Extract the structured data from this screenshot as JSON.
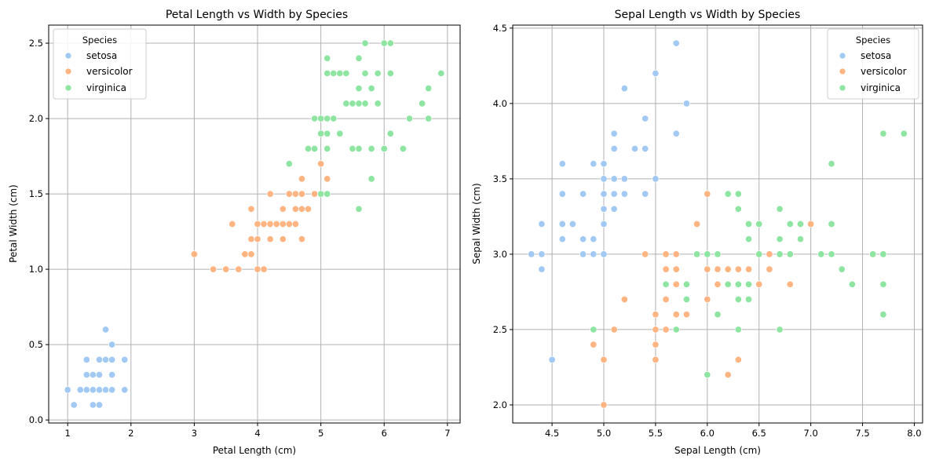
{
  "figure": {
    "background": "#ffffff"
  },
  "species_colors": {
    "setosa": "#a1c9f4",
    "versicolor": "#ffb482",
    "virginica": "#8de5a1"
  },
  "chart_data": [
    {
      "type": "scatter",
      "title": "Petal Length vs Width by Species",
      "xlabel": "Petal Length (cm)",
      "ylabel": "Petal Width (cm)",
      "xlim": [
        0.7,
        7.2
      ],
      "ylim": [
        -0.02,
        2.62
      ],
      "xticks": [
        1,
        2,
        3,
        4,
        5,
        6,
        7
      ],
      "xtick_labels": [
        "1",
        "2",
        "3",
        "4",
        "5",
        "6",
        "7"
      ],
      "yticks": [
        0.0,
        0.5,
        1.0,
        1.5,
        2.0,
        2.5
      ],
      "ytick_labels": [
        "0.0",
        "0.5",
        "1.0",
        "1.5",
        "2.0",
        "2.5"
      ],
      "grid": true,
      "legend": {
        "title": "Species",
        "placement": "top-left"
      },
      "series": [
        {
          "name": "setosa",
          "color": "#a1c9f4",
          "points": [
            [
              1.0,
              0.2
            ],
            [
              1.1,
              0.1
            ],
            [
              1.2,
              0.2
            ],
            [
              1.3,
              0.2
            ],
            [
              1.3,
              0.3
            ],
            [
              1.3,
              0.4
            ],
            [
              1.4,
              0.1
            ],
            [
              1.4,
              0.2
            ],
            [
              1.4,
              0.3
            ],
            [
              1.5,
              0.1
            ],
            [
              1.5,
              0.2
            ],
            [
              1.5,
              0.3
            ],
            [
              1.5,
              0.4
            ],
            [
              1.6,
              0.2
            ],
            [
              1.6,
              0.4
            ],
            [
              1.6,
              0.6
            ],
            [
              1.7,
              0.2
            ],
            [
              1.7,
              0.3
            ],
            [
              1.7,
              0.4
            ],
            [
              1.7,
              0.5
            ],
            [
              1.9,
              0.2
            ],
            [
              1.9,
              0.4
            ]
          ]
        },
        {
          "name": "versicolor",
          "color": "#ffb482",
          "points": [
            [
              3.0,
              1.1
            ],
            [
              3.3,
              1.0
            ],
            [
              3.5,
              1.0
            ],
            [
              3.6,
              1.3
            ],
            [
              3.7,
              1.0
            ],
            [
              3.8,
              1.1
            ],
            [
              3.9,
              1.1
            ],
            [
              3.9,
              1.2
            ],
            [
              3.9,
              1.4
            ],
            [
              4.0,
              1.0
            ],
            [
              4.0,
              1.2
            ],
            [
              4.0,
              1.3
            ],
            [
              4.1,
              1.0
            ],
            [
              4.1,
              1.3
            ],
            [
              4.2,
              1.2
            ],
            [
              4.2,
              1.3
            ],
            [
              4.2,
              1.5
            ],
            [
              4.3,
              1.3
            ],
            [
              4.4,
              1.2
            ],
            [
              4.4,
              1.3
            ],
            [
              4.4,
              1.4
            ],
            [
              4.5,
              1.3
            ],
            [
              4.5,
              1.5
            ],
            [
              4.5,
              1.7
            ],
            [
              4.6,
              1.3
            ],
            [
              4.6,
              1.4
            ],
            [
              4.6,
              1.5
            ],
            [
              4.7,
              1.2
            ],
            [
              4.7,
              1.4
            ],
            [
              4.7,
              1.5
            ],
            [
              4.7,
              1.6
            ],
            [
              4.8,
              1.4
            ],
            [
              4.8,
              1.8
            ],
            [
              4.9,
              1.5
            ],
            [
              5.0,
              1.7
            ],
            [
              5.1,
              1.6
            ]
          ]
        },
        {
          "name": "virginica",
          "color": "#8de5a1",
          "points": [
            [
              4.5,
              1.7
            ],
            [
              4.8,
              1.8
            ],
            [
              4.9,
              1.8
            ],
            [
              4.9,
              2.0
            ],
            [
              5.0,
              1.5
            ],
            [
              5.0,
              2.0
            ],
            [
              5.0,
              1.9
            ],
            [
              5.1,
              1.5
            ],
            [
              5.1,
              1.8
            ],
            [
              5.1,
              1.9
            ],
            [
              5.1,
              2.0
            ],
            [
              5.1,
              2.3
            ],
            [
              5.1,
              2.4
            ],
            [
              5.2,
              2.0
            ],
            [
              5.2,
              2.3
            ],
            [
              5.3,
              1.9
            ],
            [
              5.3,
              2.3
            ],
            [
              5.4,
              2.1
            ],
            [
              5.4,
              2.3
            ],
            [
              5.5,
              1.8
            ],
            [
              5.5,
              2.1
            ],
            [
              5.6,
              1.4
            ],
            [
              5.6,
              1.8
            ],
            [
              5.6,
              2.1
            ],
            [
              5.6,
              2.2
            ],
            [
              5.6,
              2.4
            ],
            [
              5.7,
              2.1
            ],
            [
              5.7,
              2.3
            ],
            [
              5.7,
              2.5
            ],
            [
              5.8,
              1.6
            ],
            [
              5.8,
              1.8
            ],
            [
              5.8,
              2.2
            ],
            [
              5.9,
              2.1
            ],
            [
              5.9,
              2.3
            ],
            [
              6.0,
              1.8
            ],
            [
              6.0,
              2.5
            ],
            [
              6.1,
              1.9
            ],
            [
              6.1,
              2.3
            ],
            [
              6.1,
              2.5
            ],
            [
              6.3,
              1.8
            ],
            [
              6.4,
              2.0
            ],
            [
              6.6,
              2.1
            ],
            [
              6.7,
              2.0
            ],
            [
              6.7,
              2.2
            ],
            [
              6.9,
              2.3
            ]
          ]
        }
      ]
    },
    {
      "type": "scatter",
      "title": "Sepal Length vs Width by Species",
      "xlabel": "Sepal Length (cm)",
      "ylabel": "Sepal Width (cm)",
      "xlim": [
        4.12,
        8.08
      ],
      "ylim": [
        1.88,
        4.52
      ],
      "xticks": [
        4.5,
        5.0,
        5.5,
        6.0,
        6.5,
        7.0,
        7.5,
        8.0
      ],
      "xtick_labels": [
        "4.5",
        "5.0",
        "5.5",
        "6.0",
        "6.5",
        "7.0",
        "7.5",
        "8.0"
      ],
      "yticks": [
        2.0,
        2.5,
        3.0,
        3.5,
        4.0,
        4.5
      ],
      "ytick_labels": [
        "2.0",
        "2.5",
        "3.0",
        "3.5",
        "4.0",
        "4.5"
      ],
      "grid": true,
      "legend": {
        "title": "Species",
        "placement": "top-right"
      },
      "series": [
        {
          "name": "setosa",
          "color": "#a1c9f4",
          "points": [
            [
              4.3,
              3.0
            ],
            [
              4.4,
              2.9
            ],
            [
              4.4,
              3.0
            ],
            [
              4.4,
              3.2
            ],
            [
              4.5,
              2.3
            ],
            [
              4.6,
              3.1
            ],
            [
              4.6,
              3.2
            ],
            [
              4.6,
              3.4
            ],
            [
              4.6,
              3.6
            ],
            [
              4.7,
              3.2
            ],
            [
              4.8,
              3.0
            ],
            [
              4.8,
              3.1
            ],
            [
              4.8,
              3.4
            ],
            [
              4.9,
              3.0
            ],
            [
              4.9,
              3.1
            ],
            [
              4.9,
              3.6
            ],
            [
              5.0,
              3.0
            ],
            [
              5.0,
              3.2
            ],
            [
              5.0,
              3.3
            ],
            [
              5.0,
              3.4
            ],
            [
              5.0,
              3.5
            ],
            [
              5.0,
              3.6
            ],
            [
              5.1,
              3.3
            ],
            [
              5.1,
              3.4
            ],
            [
              5.1,
              3.5
            ],
            [
              5.1,
              3.7
            ],
            [
              5.1,
              3.8
            ],
            [
              5.2,
              3.4
            ],
            [
              5.2,
              3.5
            ],
            [
              5.2,
              4.1
            ],
            [
              5.3,
              3.7
            ],
            [
              5.4,
              3.4
            ],
            [
              5.4,
              3.7
            ],
            [
              5.4,
              3.9
            ],
            [
              5.5,
              3.5
            ],
            [
              5.5,
              4.2
            ],
            [
              5.7,
              3.8
            ],
            [
              5.7,
              4.4
            ],
            [
              5.8,
              4.0
            ]
          ]
        },
        {
          "name": "versicolor",
          "color": "#ffb482",
          "points": [
            [
              4.9,
              2.4
            ],
            [
              5.0,
              2.0
            ],
            [
              5.0,
              2.3
            ],
            [
              5.1,
              2.5
            ],
            [
              5.2,
              2.7
            ],
            [
              5.4,
              3.0
            ],
            [
              5.5,
              2.3
            ],
            [
              5.5,
              2.4
            ],
            [
              5.5,
              2.5
            ],
            [
              5.5,
              2.6
            ],
            [
              5.6,
              2.5
            ],
            [
              5.6,
              2.7
            ],
            [
              5.6,
              2.9
            ],
            [
              5.6,
              3.0
            ],
            [
              5.7,
              2.6
            ],
            [
              5.7,
              2.8
            ],
            [
              5.7,
              2.9
            ],
            [
              5.7,
              3.0
            ],
            [
              5.8,
              2.6
            ],
            [
              5.8,
              2.7
            ],
            [
              5.9,
              3.0
            ],
            [
              5.9,
              3.2
            ],
            [
              6.0,
              2.2
            ],
            [
              6.0,
              2.7
            ],
            [
              6.0,
              2.9
            ],
            [
              6.0,
              3.4
            ],
            [
              6.1,
              2.8
            ],
            [
              6.1,
              2.9
            ],
            [
              6.1,
              3.0
            ],
            [
              6.2,
              2.2
            ],
            [
              6.2,
              2.9
            ],
            [
              6.3,
              2.3
            ],
            [
              6.3,
              2.5
            ],
            [
              6.3,
              2.9
            ],
            [
              6.3,
              3.3
            ],
            [
              6.4,
              2.9
            ],
            [
              6.4,
              3.2
            ],
            [
              6.5,
              2.8
            ],
            [
              6.6,
              2.9
            ],
            [
              6.6,
              3.0
            ],
            [
              6.7,
              3.0
            ],
            [
              6.7,
              3.1
            ],
            [
              6.8,
              2.8
            ],
            [
              6.9,
              3.1
            ],
            [
              7.0,
              3.2
            ]
          ]
        },
        {
          "name": "virginica",
          "color": "#8de5a1",
          "points": [
            [
              4.9,
              2.5
            ],
            [
              5.6,
              2.8
            ],
            [
              5.7,
              2.5
            ],
            [
              5.8,
              2.7
            ],
            [
              5.8,
              2.8
            ],
            [
              5.9,
              3.0
            ],
            [
              6.0,
              2.2
            ],
            [
              6.0,
              3.0
            ],
            [
              6.1,
              2.6
            ],
            [
              6.1,
              3.0
            ],
            [
              6.2,
              2.8
            ],
            [
              6.2,
              3.4
            ],
            [
              6.3,
              2.5
            ],
            [
              6.3,
              2.7
            ],
            [
              6.3,
              2.8
            ],
            [
              6.3,
              3.3
            ],
            [
              6.3,
              3.4
            ],
            [
              6.4,
              2.7
            ],
            [
              6.4,
              2.8
            ],
            [
              6.4,
              3.1
            ],
            [
              6.4,
              3.2
            ],
            [
              6.5,
              3.0
            ],
            [
              6.5,
              3.2
            ],
            [
              6.7,
              2.5
            ],
            [
              6.7,
              3.0
            ],
            [
              6.7,
              3.1
            ],
            [
              6.7,
              3.3
            ],
            [
              6.8,
              3.0
            ],
            [
              6.8,
              3.2
            ],
            [
              6.9,
              3.1
            ],
            [
              6.9,
              3.2
            ],
            [
              7.1,
              3.0
            ],
            [
              7.2,
              3.0
            ],
            [
              7.2,
              3.2
            ],
            [
              7.2,
              3.6
            ],
            [
              7.3,
              2.9
            ],
            [
              7.4,
              2.8
            ],
            [
              7.6,
              3.0
            ],
            [
              7.7,
              2.6
            ],
            [
              7.7,
              2.8
            ],
            [
              7.7,
              3.0
            ],
            [
              7.7,
              3.8
            ],
            [
              7.9,
              3.8
            ]
          ]
        }
      ]
    }
  ]
}
